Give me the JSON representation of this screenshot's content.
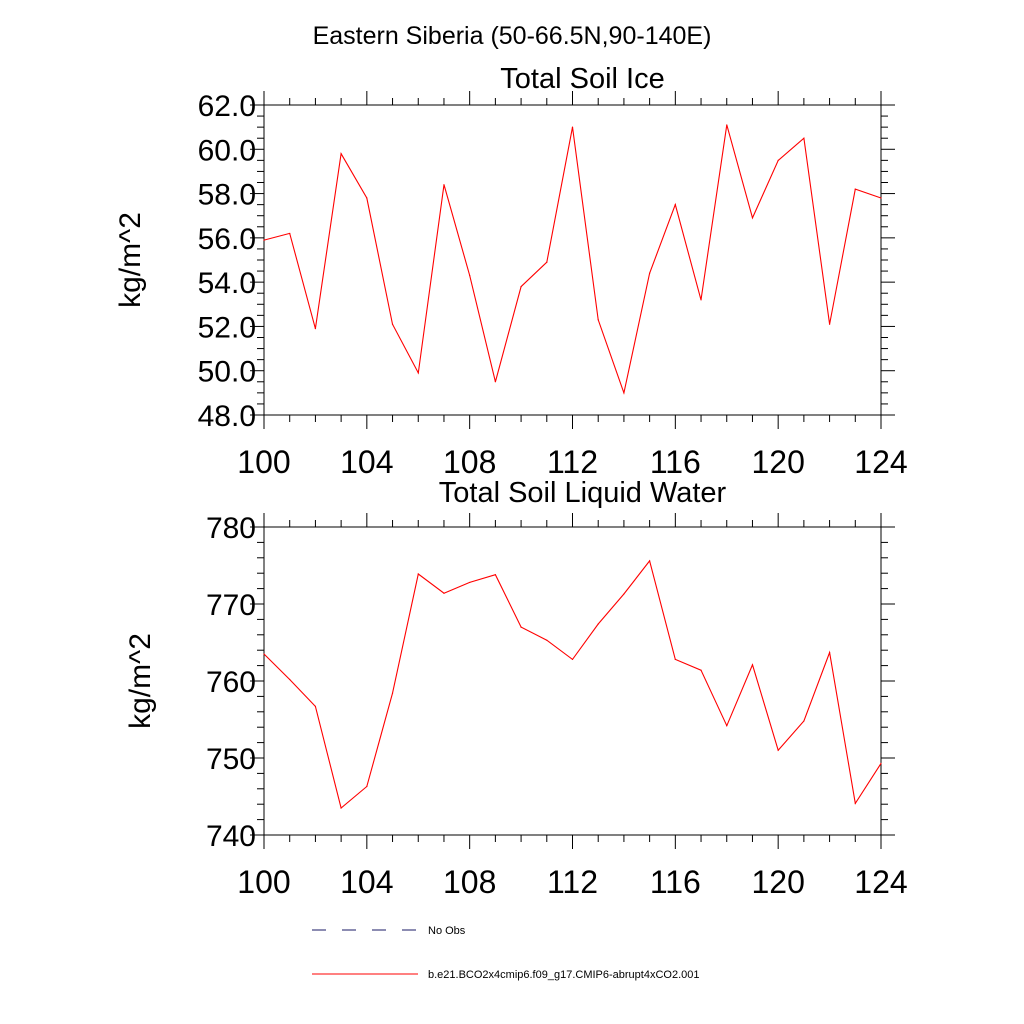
{
  "figure": {
    "main_title": "Eastern Siberia (50-66.5N,90-140E)"
  },
  "chart_data": [
    {
      "type": "line",
      "title": "Total Soil Ice",
      "ylabel": "kg/m^2",
      "xlabel": "",
      "xlim": [
        100,
        124
      ],
      "ylim": [
        48.0,
        62.0
      ],
      "x_ticks": [
        100,
        104,
        108,
        112,
        116,
        120,
        124
      ],
      "x_tick_labels": [
        "100",
        "104",
        "108",
        "112",
        "116",
        "120",
        "124"
      ],
      "y_ticks": [
        48.0,
        50.0,
        52.0,
        54.0,
        56.0,
        58.0,
        60.0,
        62.0
      ],
      "y_tick_labels": [
        "48.0",
        "50.0",
        "52.0",
        "54.0",
        "56.0",
        "58.0",
        "60.0",
        "62.0"
      ],
      "grid": false,
      "series": [
        {
          "name": "b.e21.BCO2x4cmip6.f09_g17.CMIP6-abrupt4xCO2.001",
          "color": "#ff0000",
          "x": [
            100,
            101,
            102,
            103,
            104,
            105,
            106,
            107,
            108,
            109,
            110,
            111,
            112,
            113,
            114,
            115,
            116,
            117,
            118,
            119,
            120,
            121,
            122,
            123,
            124
          ],
          "values": [
            55.9,
            56.2,
            51.9,
            59.8,
            57.8,
            52.1,
            49.9,
            58.4,
            54.3,
            49.5,
            53.8,
            54.9,
            61.0,
            52.3,
            49.0,
            54.4,
            57.5,
            53.2,
            61.1,
            56.9,
            59.5,
            60.5,
            52.1,
            58.2,
            57.8
          ]
        }
      ]
    },
    {
      "type": "line",
      "title": "Total Soil Liquid Water",
      "ylabel": "kg/m^2",
      "xlabel": "",
      "xlim": [
        100,
        124
      ],
      "ylim": [
        740,
        780
      ],
      "x_ticks": [
        100,
        104,
        108,
        112,
        116,
        120,
        124
      ],
      "x_tick_labels": [
        "100",
        "104",
        "108",
        "112",
        "116",
        "120",
        "124"
      ],
      "y_ticks": [
        740,
        750,
        760,
        770,
        780
      ],
      "y_tick_labels": [
        "740",
        "750",
        "760",
        "770",
        "780"
      ],
      "grid": false,
      "series": [
        {
          "name": "b.e21.BCO2x4cmip6.f09_g17.CMIP6-abrupt4xCO2.001",
          "color": "#ff0000",
          "x": [
            100,
            101,
            102,
            103,
            104,
            105,
            106,
            107,
            108,
            109,
            110,
            111,
            112,
            113,
            114,
            115,
            116,
            117,
            118,
            119,
            120,
            121,
            122,
            123,
            124
          ],
          "values": [
            763.5,
            760.2,
            756.7,
            743.5,
            746.3,
            758.4,
            773.9,
            771.4,
            772.8,
            773.8,
            767.0,
            765.3,
            762.8,
            767.4,
            771.3,
            775.6,
            762.8,
            761.4,
            754.2,
            762.1,
            751.0,
            754.8,
            763.7,
            744.1,
            749.3
          ]
        }
      ]
    }
  ],
  "legend": {
    "placement": "bottom",
    "entries": [
      {
        "label": "No Obs",
        "style": "dashed",
        "color": "#1a1a66"
      },
      {
        "label": "b.e21.BCO2x4cmip6.f09_g17.CMIP6-abrupt4xCO2.001",
        "style": "solid",
        "color": "#ff0000"
      }
    ]
  }
}
